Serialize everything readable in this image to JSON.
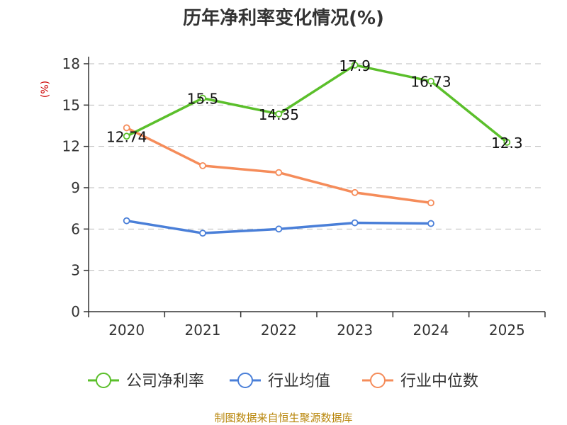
{
  "chart_data": {
    "type": "line",
    "title": "历年净利率变化情况(%)",
    "ylabel": "(%)",
    "categories": [
      "2020",
      "2021",
      "2022",
      "2023",
      "2024",
      "2025"
    ],
    "yticks": [
      "0",
      "3",
      "6",
      "9",
      "12",
      "15",
      "18"
    ],
    "ylim": [
      0,
      18
    ],
    "grid": true,
    "legend_position": "bottom",
    "series": [
      {
        "name": "公司净利率",
        "color": "#5bbf2b",
        "values": [
          12.74,
          15.5,
          14.35,
          17.9,
          16.73,
          12.3
        ],
        "labels": [
          "12.74",
          "15.5",
          "14.35",
          "17.9",
          "16.73",
          "12.3"
        ]
      },
      {
        "name": "行业均值",
        "color": "#4a7fd8",
        "values": [
          6.6,
          5.7,
          6.0,
          6.45,
          6.4,
          null
        ]
      },
      {
        "name": "行业中位数",
        "color": "#f58c5a",
        "values": [
          13.35,
          10.6,
          10.1,
          8.65,
          7.9,
          null
        ]
      }
    ]
  },
  "source_text": "制图数据来自恒生聚源数据库"
}
